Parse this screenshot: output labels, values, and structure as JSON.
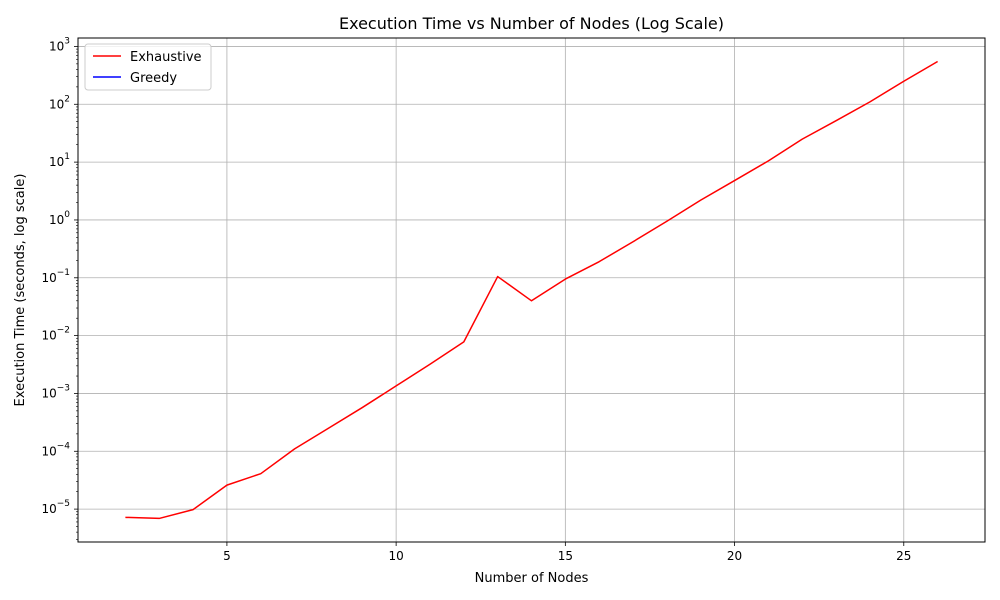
{
  "chart_data": {
    "type": "line",
    "title": "Execution Time vs Number of Nodes (Log Scale)",
    "xlabel": "Number of Nodes",
    "ylabel": "Execution Time (seconds, log scale)",
    "xlim": [
      0.6,
      27.4
    ],
    "ylim": [
      2.7e-06,
      1400
    ],
    "yscale": "log",
    "grid": true,
    "legend_position": "top-left",
    "x_ticks": [
      5,
      10,
      15,
      20,
      25
    ],
    "x_tick_labels": [
      "5",
      "10",
      "15",
      "20",
      "25"
    ],
    "y_ticks": [
      1e-05,
      0.0001,
      0.001,
      0.01,
      0.1,
      1.0,
      10.0,
      100.0,
      1000.0
    ],
    "y_tick_bases": [
      "10",
      "10",
      "10",
      "10",
      "10",
      "10",
      "10",
      "10",
      "10"
    ],
    "y_tick_exponents": [
      "−5",
      "−4",
      "−3",
      "−2",
      "−1",
      "0",
      "1",
      "2",
      "3"
    ],
    "series": [
      {
        "name": "Exhaustive",
        "color": "#ff0000",
        "x": [
          2,
          3,
          4,
          5,
          6,
          7,
          8,
          9,
          10,
          11,
          12,
          13,
          14,
          15,
          16,
          17,
          18,
          19,
          20,
          21,
          22,
          23,
          24,
          25,
          26
        ],
        "y": [
          7.2e-06,
          6.9e-06,
          9.8e-06,
          2.6e-05,
          4.1e-05,
          0.00011,
          0.00025,
          0.00057,
          0.00135,
          0.0032,
          0.0078,
          0.105,
          0.04,
          0.095,
          0.19,
          0.42,
          0.95,
          2.2,
          4.8,
          10.5,
          25,
          52,
          110,
          250,
          550
        ]
      },
      {
        "name": "Greedy",
        "color": "#0000ff",
        "x": [],
        "y": []
      }
    ]
  }
}
